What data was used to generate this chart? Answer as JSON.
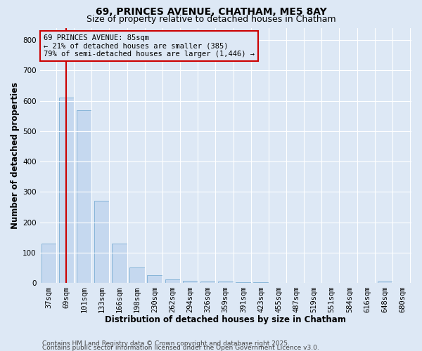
{
  "title_line1": "69, PRINCES AVENUE, CHATHAM, ME5 8AY",
  "title_line2": "Size of property relative to detached houses in Chatham",
  "xlabel": "Distribution of detached houses by size in Chatham",
  "ylabel": "Number of detached properties",
  "categories": [
    "37sqm",
    "69sqm",
    "101sqm",
    "133sqm",
    "166sqm",
    "198sqm",
    "230sqm",
    "262sqm",
    "294sqm",
    "326sqm",
    "359sqm",
    "391sqm",
    "423sqm",
    "455sqm",
    "487sqm",
    "519sqm",
    "551sqm",
    "584sqm",
    "616sqm",
    "648sqm",
    "680sqm"
  ],
  "values": [
    130,
    610,
    570,
    270,
    130,
    50,
    25,
    12,
    7,
    5,
    4,
    3,
    2,
    1,
    1,
    1,
    1,
    1,
    0,
    5,
    0
  ],
  "bar_color": "#c5d8ef",
  "bar_edge_color": "#7aadd4",
  "background_color": "#dde8f5",
  "grid_color": "#ffffff",
  "vline_color": "#cc0000",
  "vline_x": 1.5,
  "annotation_text": "69 PRINCES AVENUE: 85sqm\n← 21% of detached houses are smaller (385)\n79% of semi-detached houses are larger (1,446) →",
  "annotation_box_color": "#cc0000",
  "ylim": [
    0,
    840
  ],
  "yticks": [
    0,
    100,
    200,
    300,
    400,
    500,
    600,
    700,
    800
  ],
  "footer_line1": "Contains HM Land Registry data © Crown copyright and database right 2025.",
  "footer_line2": "Contains public sector information licensed under the Open Government Licence v3.0.",
  "title_fontsize": 10,
  "subtitle_fontsize": 9,
  "axis_label_fontsize": 8.5,
  "tick_fontsize": 7.5,
  "annotation_fontsize": 7.5,
  "footer_fontsize": 6.5
}
